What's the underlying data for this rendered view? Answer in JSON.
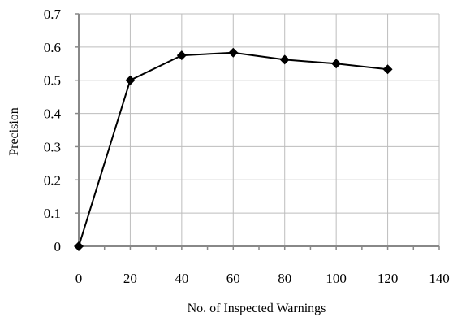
{
  "chart_data": {
    "type": "line",
    "title": "",
    "xlabel": "No. of Inspected Warnings",
    "ylabel": "Precision",
    "xlim": [
      0,
      140
    ],
    "ylim": [
      0,
      0.7
    ],
    "x_ticks": [
      "0",
      "20",
      "40",
      "60",
      "80",
      "100",
      "120",
      "140"
    ],
    "y_ticks": [
      "0",
      "0.1",
      "0.2",
      "0.3",
      "0.4",
      "0.5",
      "0.6",
      "0.7"
    ],
    "grid": true,
    "legend": "none",
    "marker": "diamond",
    "series": [
      {
        "color": "#000000",
        "x": [
          0,
          20,
          40,
          60,
          80,
          100,
          120
        ],
        "values": [
          0,
          0.5,
          0.575,
          0.583,
          0.562,
          0.55,
          0.533
        ]
      }
    ]
  }
}
